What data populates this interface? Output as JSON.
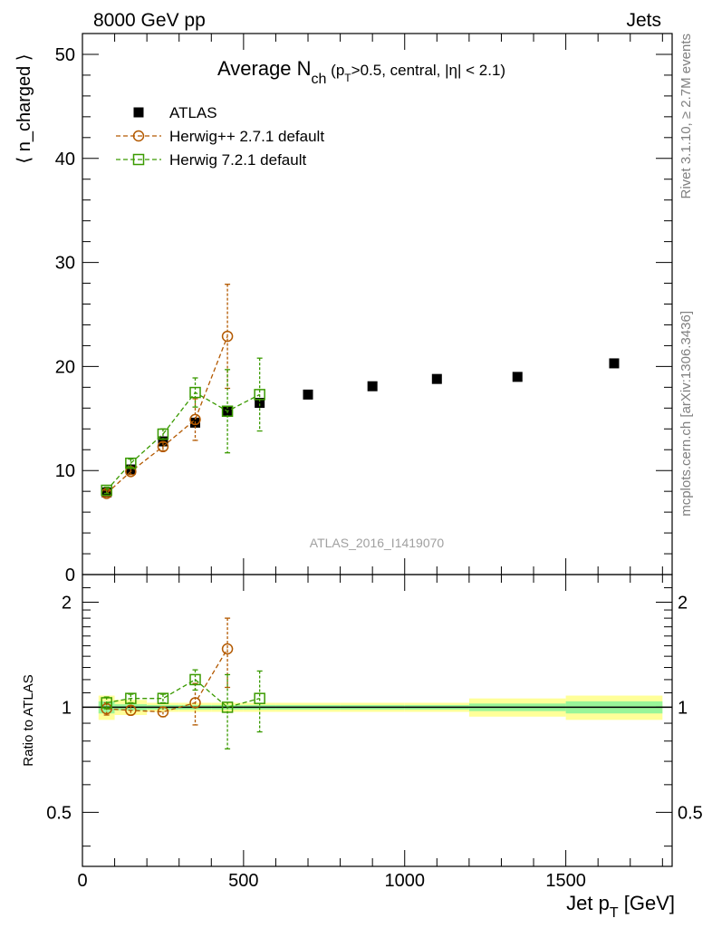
{
  "header": {
    "energy": "8000 GeV pp",
    "process": "Jets"
  },
  "side_labels": {
    "rivet": "Rivet 3.1.10, ≥ 2.7M events",
    "mcplots": "mcplots.cern.ch [arXiv:1306.3436]"
  },
  "analysis_id": "ATLAS_2016_I1419070",
  "chart_data": [
    {
      "type": "scatter",
      "panel": "main",
      "title": {
        "main": "Average N",
        "sub": "ch",
        "cond_open": " (p",
        "cond_sub": "T",
        "cond_rest": ">0.5, central, |η| < 2.1)"
      },
      "ylabel": "⟨ n_charged ⟩",
      "xlim": [
        0,
        1830
      ],
      "ylim": [
        0,
        52
      ],
      "yticks": [
        0,
        10,
        20,
        30,
        40,
        50
      ],
      "ytick_labels": [
        "0",
        "10",
        "20",
        "30",
        "40",
        "50"
      ],
      "legend_position": "top-left",
      "series": [
        {
          "name": "ATLAS",
          "color": "#000000",
          "marker": "filled-square",
          "x": [
            75,
            150,
            250,
            350,
            450,
            550,
            700,
            900,
            1100,
            1350,
            1650
          ],
          "y": [
            7.9,
            10.1,
            12.8,
            14.6,
            15.7,
            16.5,
            17.3,
            18.1,
            18.8,
            19.0,
            20.3
          ]
        },
        {
          "name": "Herwig++ 2.7.1 default",
          "color": "#b35900",
          "marker": "open-circle",
          "line": "dashed",
          "x": [
            75,
            150,
            250,
            350,
            450
          ],
          "y": [
            7.8,
            9.9,
            12.3,
            14.9,
            22.9
          ],
          "yerr": [
            0.3,
            0.3,
            0.4,
            2.0,
            5.0
          ]
        },
        {
          "name": "Herwig 7.2.1 default",
          "color": "#3a9a00",
          "marker": "open-square",
          "line": "dashed",
          "x": [
            75,
            150,
            250,
            350,
            450,
            550
          ],
          "y": [
            8.1,
            10.7,
            13.5,
            17.5,
            15.7,
            17.3
          ],
          "yerr": [
            0.3,
            0.4,
            0.5,
            1.4,
            4.0,
            3.5
          ]
        }
      ]
    },
    {
      "type": "scatter",
      "panel": "ratio",
      "ylabel": "Ratio to ATLAS",
      "xlabel": {
        "main": "Jet p",
        "sub": "T",
        "unit": " [GeV]"
      },
      "xlim": [
        0,
        1830
      ],
      "ylim": [
        0.35,
        2.4
      ],
      "yscale": "log",
      "xticks": [
        0,
        500,
        1000,
        1500
      ],
      "xtick_labels": [
        "0",
        "500",
        "1000",
        "1500"
      ],
      "yticks": [
        0.5,
        1,
        2
      ],
      "ytick_labels": [
        "0.5",
        "1",
        "2"
      ],
      "bands": {
        "bins": [
          [
            50,
            100
          ],
          [
            100,
            200
          ],
          [
            200,
            300
          ],
          [
            300,
            400
          ],
          [
            400,
            500
          ],
          [
            500,
            600
          ],
          [
            600,
            800
          ],
          [
            800,
            1000
          ],
          [
            1000,
            1200
          ],
          [
            1200,
            1500
          ],
          [
            1500,
            1800
          ]
        ],
        "stat_half_width": [
          0.04,
          0.02,
          0.015,
          0.015,
          0.015,
          0.015,
          0.015,
          0.015,
          0.015,
          0.025,
          0.04
        ],
        "total_half_width": [
          0.08,
          0.05,
          0.03,
          0.03,
          0.03,
          0.03,
          0.03,
          0.03,
          0.03,
          0.06,
          0.08
        ],
        "stat_color": "#99f599",
        "total_color": "#ffff99"
      },
      "series": [
        {
          "name": "Herwig++ 2.7.1 default",
          "color": "#b35900",
          "marker": "open-circle",
          "x": [
            75,
            150,
            250,
            350,
            450
          ],
          "y": [
            0.99,
            0.98,
            0.97,
            1.03,
            1.47
          ],
          "yerr": [
            0.04,
            0.03,
            0.03,
            0.14,
            0.33
          ]
        },
        {
          "name": "Herwig 7.2.1 default",
          "color": "#3a9a00",
          "marker": "open-square",
          "x": [
            75,
            150,
            250,
            350,
            450,
            550
          ],
          "y": [
            1.03,
            1.06,
            1.06,
            1.2,
            1.0,
            1.06
          ],
          "yerr": [
            0.04,
            0.03,
            0.03,
            0.08,
            0.24,
            0.21
          ]
        }
      ]
    }
  ]
}
